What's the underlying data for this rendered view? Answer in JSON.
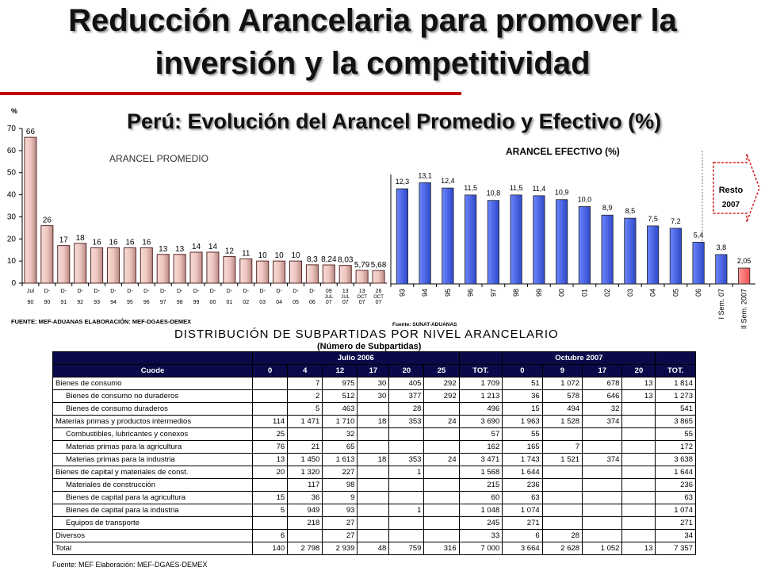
{
  "title_line1": "Reducción Arancelaria para promover la",
  "title_line2": "inversión y la competitividad",
  "subtitle": "Perú: Evolución del Arancel Promedio y Efectivo (%)",
  "colors": {
    "red_line": "#c00000",
    "bar_promedio": "#efc6c0",
    "bar_efectivo": "#2e48c8",
    "bar_resto": "#ee5050",
    "header_bg": "#0a0a4a"
  },
  "chart_data": [
    {
      "type": "bar",
      "title": "ARANCEL PROMEDIO",
      "ylabel": "%",
      "ylim": [
        0,
        70
      ],
      "yticks": [
        "0",
        "10",
        "20",
        "30",
        "40",
        "50",
        "60",
        "70"
      ],
      "categories": [
        {
          "top": "Jul",
          "bottom": "90"
        },
        {
          "top": "D-",
          "bottom": "90"
        },
        {
          "top": "D-",
          "bottom": "91"
        },
        {
          "top": "D-",
          "bottom": "92"
        },
        {
          "top": "D-",
          "bottom": "93"
        },
        {
          "top": "D-",
          "bottom": "94"
        },
        {
          "top": "D-",
          "bottom": "95"
        },
        {
          "top": "D-",
          "bottom": "96"
        },
        {
          "top": "D-",
          "bottom": "97"
        },
        {
          "top": "D-",
          "bottom": "98"
        },
        {
          "top": "D-",
          "bottom": "99"
        },
        {
          "top": "D-",
          "bottom": "00"
        },
        {
          "top": "D-",
          "bottom": "01"
        },
        {
          "top": "D-",
          "bottom": "02"
        },
        {
          "top": "D-",
          "bottom": "03"
        },
        {
          "top": "D-",
          "bottom": "04"
        },
        {
          "top": "D-",
          "bottom": "05"
        },
        {
          "top": "D-",
          "bottom": "06"
        },
        {
          "top": "09",
          "mid": "JUL",
          "bottom": "07"
        },
        {
          "top": "13",
          "mid": "JUL",
          "bottom": "07"
        },
        {
          "top": "13",
          "mid": "OCT",
          "bottom": "07"
        },
        {
          "top": "26",
          "mid": "OCT",
          "bottom": "07"
        }
      ],
      "values": [
        66,
        26,
        17,
        18,
        16,
        16,
        16,
        16,
        13,
        13,
        14,
        14,
        12,
        11,
        10,
        10,
        10,
        8.3,
        8.24,
        8.03,
        5.79,
        5.68
      ],
      "data_labels": [
        "66",
        "26",
        "17",
        "18",
        "16",
        "16",
        "16",
        "16",
        "13",
        "13",
        "14",
        "14",
        "12",
        "11",
        "10",
        "10",
        "10",
        "8,3",
        "8,24",
        "8,03",
        "5,79",
        "5,68"
      ],
      "source": "FUENTE: MEF-ADUANAS ELABORACIÓN: MEF-DGAES-DEMEX"
    },
    {
      "type": "bar",
      "title": "ARANCEL EFECTIVO (%)",
      "ylim": [
        0,
        16
      ],
      "categories": [
        "93",
        "94",
        "95",
        "96",
        "97",
        "98",
        "99",
        "00",
        "01",
        "02",
        "03",
        "04",
        "05",
        "06",
        "I Sem. 07",
        "II Sem. 2007"
      ],
      "values": [
        12.3,
        13.1,
        12.4,
        11.5,
        10.8,
        11.5,
        11.4,
        10.9,
        10.0,
        8.9,
        8.5,
        7.5,
        7.2,
        5.4,
        3.8,
        2.05
      ],
      "data_labels": [
        "12,3",
        "13,1",
        "12,4",
        "11,5",
        "10,8",
        "11,5",
        "11,4",
        "10,9",
        "10,0",
        "8,9",
        "8,5",
        "7,5",
        "7,2",
        "5,4",
        "3,8",
        "2,05"
      ],
      "callout": [
        "Resto",
        "2007"
      ],
      "source": "Fuente: SUNAT-ADUANAS"
    }
  ],
  "table": {
    "title": "DISTRIBUCIÓN DE SUBPARTIDAS POR NIVEL ARANCELARIO",
    "subtitle": "(Número de Subpartidas)",
    "group_headers": {
      "julio": "Julio 2006",
      "octubre": "Octubre 2007"
    },
    "col_headers": [
      "Cuode",
      "0",
      "4",
      "12",
      "17",
      "20",
      "25",
      "TOT.",
      "0",
      "9",
      "17",
      "20",
      "TOT."
    ],
    "rows": [
      {
        "label": "Bienes de consumo",
        "sub": false,
        "cells": [
          "",
          "7",
          "975",
          "30",
          "405",
          "292",
          "1 709",
          "51",
          "1 072",
          "678",
          "13",
          "1 814"
        ]
      },
      {
        "label": "Bienes de consumo no duraderos",
        "sub": true,
        "cells": [
          "",
          "2",
          "512",
          "30",
          "377",
          "292",
          "1 213",
          "36",
          "578",
          "646",
          "13",
          "1 273"
        ]
      },
      {
        "label": "Bienes de consumo duraderos",
        "sub": true,
        "cells": [
          "",
          "5",
          "463",
          "",
          "28",
          "",
          "496",
          "15",
          "494",
          "32",
          "",
          "541"
        ]
      },
      {
        "label": "Materias primas y productos intermedios",
        "sub": false,
        "cells": [
          "114",
          "1 471",
          "1 710",
          "18",
          "353",
          "24",
          "3 690",
          "1 963",
          "1 528",
          "374",
          "",
          "3 865"
        ]
      },
      {
        "label": "Combustibles, lubricantes y conexos",
        "sub": true,
        "cells": [
          "25",
          "",
          "32",
          "",
          "",
          "",
          "57",
          "55",
          "",
          "",
          "",
          "55"
        ]
      },
      {
        "label": "Materias primas para la agricultura",
        "sub": true,
        "cells": [
          "76",
          "21",
          "65",
          "",
          "",
          "",
          "162",
          "165",
          "7",
          "",
          "",
          "172"
        ]
      },
      {
        "label": "Materias primas para la industria",
        "sub": true,
        "cells": [
          "13",
          "1 450",
          "1 613",
          "18",
          "353",
          "24",
          "3 471",
          "1 743",
          "1 521",
          "374",
          "",
          "3 638"
        ]
      },
      {
        "label": "Bienes de capital y materiales de const.",
        "sub": false,
        "cells": [
          "20",
          "1 320",
          "227",
          "",
          "1",
          "",
          "1 568",
          "1 644",
          "",
          "",
          "",
          "1 644"
        ]
      },
      {
        "label": "Materiales de construcción",
        "sub": true,
        "cells": [
          "",
          "117",
          "98",
          "",
          "",
          "",
          "215",
          "236",
          "",
          "",
          "",
          "236"
        ]
      },
      {
        "label": "Bienes de capital para la agricultura",
        "sub": true,
        "cells": [
          "15",
          "36",
          "9",
          "",
          "",
          "",
          "60",
          "63",
          "",
          "",
          "",
          "63"
        ]
      },
      {
        "label": "Bienes de capital para la industria",
        "sub": true,
        "cells": [
          "5",
          "949",
          "93",
          "",
          "1",
          "",
          "1 048",
          "1 074",
          "",
          "",
          "",
          "1 074"
        ]
      },
      {
        "label": "Equipos de transporte",
        "sub": true,
        "cells": [
          "",
          "218",
          "27",
          "",
          "",
          "",
          "245",
          "271",
          "",
          "",
          "",
          "271"
        ]
      },
      {
        "label": "Diversos",
        "sub": false,
        "cells": [
          "6",
          "",
          "27",
          "",
          "",
          "",
          "33",
          "6",
          "28",
          "",
          "",
          "34"
        ]
      },
      {
        "label": "Total",
        "sub": false,
        "cells": [
          "140",
          "2 798",
          "2 939",
          "48",
          "759",
          "316",
          "7 000",
          "3 664",
          "2 628",
          "1 052",
          "13",
          "7 357"
        ]
      }
    ],
    "source": "Fuente: MEF Elaboración: MEF-DGAES-DEMEX"
  }
}
